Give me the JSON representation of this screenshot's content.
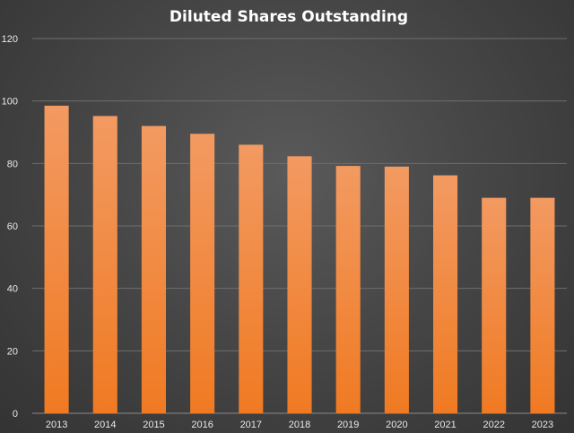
{
  "chart_data": {
    "type": "bar",
    "title": "Diluted Shares Outstanding",
    "categories": [
      "2013",
      "2014",
      "2015",
      "2016",
      "2017",
      "2018",
      "2019",
      "2020",
      "2021",
      "2022",
      "2023"
    ],
    "values": [
      98.5,
      95.2,
      92.0,
      89.5,
      86.0,
      82.3,
      79.2,
      79.0,
      76.2,
      69.0,
      69.0
    ],
    "ylim": [
      0,
      120
    ],
    "yticks": [
      0,
      20,
      40,
      60,
      80,
      100,
      120
    ],
    "xlabel": "",
    "ylabel": "",
    "grid": true,
    "colors": {
      "bar_top": "#f29a62",
      "bar_bottom": "#f07a22",
      "background": "#474747"
    }
  }
}
